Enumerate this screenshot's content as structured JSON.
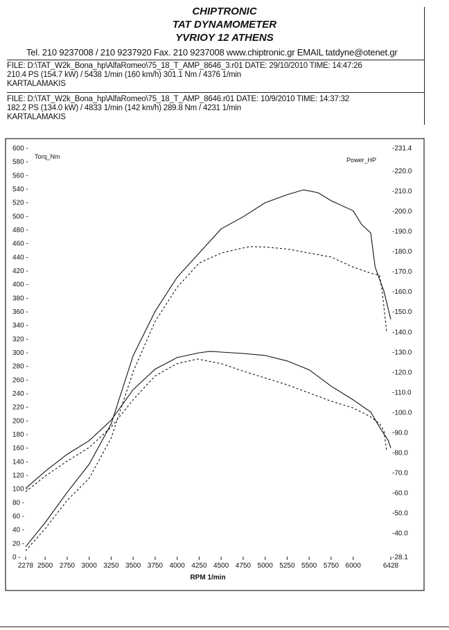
{
  "header": {
    "company": "CHIPTRONIC",
    "subtitle": "TAT DYNAMOMETER",
    "address": "YVRIOY 12 ATHENS",
    "contact": "Tel. 210 9237008 / 210 9237920   Fax. 210 9237008 www.chiptronic.gr EMAIL tatdyne@otenet.gr"
  },
  "runs": [
    {
      "file_line": "FILE: D:\\TAT_W2k_Bona_hp\\AlfaRomeo\\75_18_T_AMP_8646_3.r01  DATE: 29/10/2010  TIME: 14:47:26",
      "result_line": "210.4 PS  (154.7 kW) / 5438 1/min (160 km/h)    301.1 Nm / 4376 1/min",
      "operator": "KARTALAMAKIS"
    },
    {
      "file_line": "FILE: D:\\TAT_W2k_Bona_hp\\AlfaRomeo\\75_18_T_AMP_8646.r01  DATE: 10/9/2010  TIME: 14:37:32",
      "result_line": "182.2 PS  (134.0 kW) / 4833 1/min (142 km/h)    289.8 Nm / 4231 1/min",
      "operator": "KARTALAMAKIS"
    }
  ],
  "chart_data": {
    "type": "line",
    "xlabel": "RPM  1/min",
    "ylabel_left": "Torq_Nm",
    "ylabel_right": "Power_HP",
    "xlim": [
      2278,
      6428
    ],
    "ylim_left": [
      0,
      600
    ],
    "ylim_right": [
      28.1,
      231.4
    ],
    "grid": false,
    "x_ticks": [
      "2278",
      "2500",
      "2750",
      "3000",
      "3250",
      "3500",
      "3750",
      "4000",
      "4250",
      "4500",
      "4750",
      "5000",
      "5250",
      "5500",
      "5750",
      "6000",
      "6428"
    ],
    "left_ticks": [
      "0",
      "20",
      "40",
      "60",
      "80",
      "100",
      "120",
      "140",
      "160",
      "180",
      "200",
      "220",
      "240",
      "260",
      "280",
      "300",
      "320",
      "340",
      "360",
      "380",
      "400",
      "420",
      "440",
      "460",
      "480",
      "500",
      "520",
      "540",
      "560",
      "580",
      "600"
    ],
    "right_ticks": [
      "28.1",
      "40.0",
      "50.0",
      "60.0",
      "70.0",
      "80.0",
      "90.0",
      "100.0",
      "110.0",
      "120.0",
      "130.0",
      "140.0",
      "150.0",
      "160.0",
      "170.0",
      "180.0",
      "190.0",
      "200.0",
      "210.0",
      "220.0",
      "231.4"
    ],
    "series": [
      {
        "axis": "right",
        "style": "solid",
        "x": [
          2278,
          2500,
          2750,
          3000,
          3250,
          3500,
          3750,
          4000,
          4250,
          4500,
          4750,
          5000,
          5250,
          5438,
          5600,
          5750,
          6000,
          6100,
          6200,
          6250,
          6350,
          6400,
          6428
        ],
        "values": [
          33,
          45,
          60,
          74,
          94,
          128,
          150,
          167,
          179,
          191,
          197,
          204,
          208,
          210.4,
          209,
          205,
          200,
          193,
          189,
          172,
          160,
          151,
          146
        ]
      },
      {
        "axis": "right",
        "style": "dashed",
        "x": [
          2278,
          2500,
          2750,
          3000,
          3250,
          3500,
          3750,
          4000,
          4250,
          4500,
          4750,
          4833,
          5000,
          5250,
          5500,
          5750,
          6000,
          6200,
          6300,
          6330,
          6380
        ],
        "values": [
          31,
          42,
          56,
          67,
          87,
          120,
          145,
          162,
          174,
          179,
          181.5,
          182.2,
          182,
          181,
          179,
          177,
          172,
          169,
          168,
          160,
          140
        ]
      },
      {
        "axis": "left",
        "style": "solid",
        "x": [
          2278,
          2500,
          2750,
          3000,
          3250,
          3500,
          3750,
          4000,
          4250,
          4376,
          4500,
          4750,
          5000,
          5250,
          5500,
          5750,
          6000,
          6200,
          6300,
          6400,
          6428
        ],
        "values": [
          100,
          125,
          150,
          170,
          200,
          245,
          275,
          292,
          299,
          301.1,
          300,
          298,
          295,
          287,
          274,
          250,
          230,
          212,
          190,
          170,
          159
        ]
      },
      {
        "axis": "left",
        "style": "dashed",
        "x": [
          2278,
          2500,
          2750,
          3000,
          3250,
          3500,
          3750,
          4000,
          4231,
          4500,
          4750,
          5000,
          5250,
          5500,
          5750,
          6000,
          6200,
          6300,
          6350,
          6380
        ],
        "values": [
          95,
          118,
          140,
          160,
          190,
          230,
          265,
          283,
          289.8,
          283,
          272,
          262,
          252,
          240,
          228,
          218,
          205,
          195,
          185,
          155
        ]
      }
    ]
  }
}
